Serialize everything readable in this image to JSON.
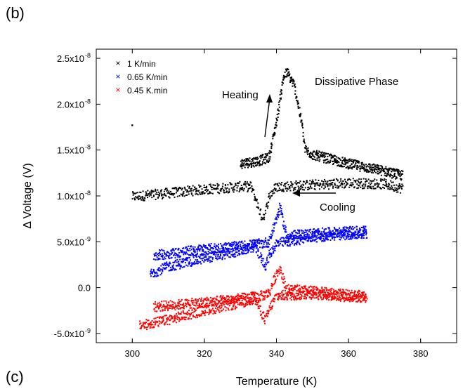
{
  "panel_labels": {
    "top": "(b)",
    "bottom": "(c)"
  },
  "chart_data": {
    "type": "scatter",
    "xlabel": "Temperature (K)",
    "ylabel": "Δ Voltage (V)",
    "xlim": [
      290,
      390
    ],
    "ylim": [
      -6e-09,
      2.6e-08
    ],
    "x_ticks": [
      300,
      320,
      340,
      360,
      380
    ],
    "y_ticks": [
      {
        "value": -5e-09,
        "base": "-5.0x10",
        "exp": "-9"
      },
      {
        "value": 0,
        "base": "0.0",
        "exp": ""
      },
      {
        "value": 5e-09,
        "base": "5.0x10",
        "exp": "-9"
      },
      {
        "value": 1e-08,
        "base": "1.0x10",
        "exp": "-8"
      },
      {
        "value": 1.5e-08,
        "base": "1.5x10",
        "exp": "-8"
      },
      {
        "value": 2e-08,
        "base": "2.0x10",
        "exp": "-8"
      },
      {
        "value": 2.5e-08,
        "base": "2.5x10",
        "exp": "-8"
      }
    ],
    "legend_position": "top-left",
    "grid": false,
    "series": [
      {
        "name": "1 K/min",
        "color": "#000000",
        "outlier": [
          300,
          1.77e-08
        ],
        "cooling": [
          [
            300,
            9.9e-09
          ],
          [
            310,
            1.03e-08
          ],
          [
            320,
            1.07e-08
          ],
          [
            330,
            1.1e-08
          ],
          [
            333,
            1.1e-08
          ],
          [
            335,
            8.8e-09
          ],
          [
            336,
            7.6e-09
          ],
          [
            337,
            8.2e-09
          ],
          [
            338,
            1e-08
          ],
          [
            340,
            1.1e-08
          ],
          [
            350,
            1.12e-08
          ],
          [
            360,
            1.14e-08
          ],
          [
            370,
            1.13e-08
          ],
          [
            375,
            1.08e-08
          ]
        ],
        "heating": [
          [
            330,
            1.35e-08
          ],
          [
            335,
            1.38e-08
          ],
          [
            338,
            1.42e-08
          ],
          [
            340,
            1.8e-08
          ],
          [
            342,
            2.3e-08
          ],
          [
            343,
            2.35e-08
          ],
          [
            345,
            2.2e-08
          ],
          [
            347,
            1.8e-08
          ],
          [
            348,
            1.5e-08
          ],
          [
            350,
            1.45e-08
          ],
          [
            360,
            1.35e-08
          ],
          [
            370,
            1.27e-08
          ],
          [
            375,
            1.22e-08
          ]
        ]
      },
      {
        "name": "0.65 K/min",
        "color": "#0000ff",
        "cooling": [
          [
            305,
            1.5e-09
          ],
          [
            310,
            2.3e-09
          ],
          [
            320,
            3.2e-09
          ],
          [
            330,
            4e-09
          ],
          [
            334,
            4.5e-09
          ],
          [
            336,
            3e-09
          ],
          [
            337,
            2.4e-09
          ],
          [
            338,
            3.5e-09
          ],
          [
            340,
            4.8e-09
          ],
          [
            350,
            5.5e-09
          ],
          [
            360,
            5.8e-09
          ],
          [
            365,
            5.8e-09
          ]
        ],
        "heating": [
          [
            306,
            3.5e-09
          ],
          [
            320,
            4.2e-09
          ],
          [
            330,
            4.5e-09
          ],
          [
            336,
            4.8e-09
          ],
          [
            338,
            5e-09
          ],
          [
            340,
            7.5e-09
          ],
          [
            341,
            8.8e-09
          ],
          [
            342,
            7e-09
          ],
          [
            343,
            5.6e-09
          ],
          [
            350,
            5.9e-09
          ],
          [
            360,
            6.1e-09
          ],
          [
            365,
            6.2e-09
          ]
        ]
      },
      {
        "name": "0.45 K.min",
        "color": "#ff0000",
        "cooling": [
          [
            302,
            -4.2e-09
          ],
          [
            310,
            -3.5e-09
          ],
          [
            320,
            -2.5e-09
          ],
          [
            330,
            -1.7e-09
          ],
          [
            334,
            -1.2e-09
          ],
          [
            336,
            -2.8e-09
          ],
          [
            337,
            -3.6e-09
          ],
          [
            338,
            -2.4e-09
          ],
          [
            340,
            -9e-10
          ],
          [
            350,
            -7e-10
          ],
          [
            360,
            -1e-09
          ],
          [
            365,
            -1.1e-09
          ]
        ],
        "heating": [
          [
            306,
            -2.1e-09
          ],
          [
            320,
            -1.6e-09
          ],
          [
            330,
            -1.2e-09
          ],
          [
            336,
            -9e-10
          ],
          [
            338,
            -6e-10
          ],
          [
            340,
            1.5e-09
          ],
          [
            341,
            2.2e-09
          ],
          [
            342,
            8e-10
          ],
          [
            343,
            -2e-10
          ],
          [
            350,
            -4e-10
          ],
          [
            360,
            -8e-10
          ],
          [
            365,
            -9e-10
          ]
        ]
      }
    ],
    "annotations": {
      "heating": "Heating",
      "cooling": "Cooling",
      "phase": "Dissipative Phase"
    }
  }
}
